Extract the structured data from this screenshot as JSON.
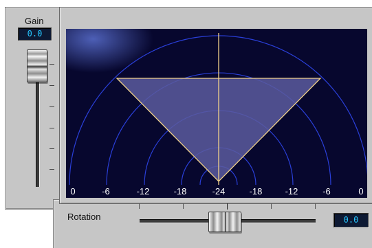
{
  "gain": {
    "label": "Gain",
    "value": "0.0"
  },
  "rotation": {
    "label": "Rotation",
    "value": "0.0"
  },
  "display": {
    "axis_labels": [
      "0",
      "-6",
      "-12",
      "-18",
      "-24",
      "-18",
      "-12",
      "-6",
      "0"
    ]
  },
  "colors": {
    "panel": "#c6c6c6",
    "display_bg": "#07072e",
    "arc_line": "#2a3fd8",
    "wedge_fill": "#5a5a9e",
    "wedge_line": "#f1d28a",
    "axis_text": "#ffffff",
    "lcd_text": "#26c6ff"
  }
}
